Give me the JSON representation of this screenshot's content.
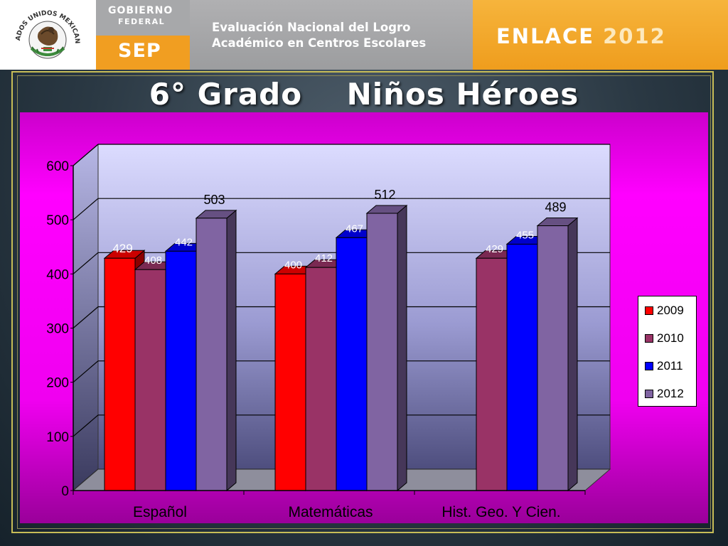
{
  "header": {
    "seal_text": "ESTADOS UNIDOS MEXICANOS",
    "gobierno": "GOBIERNO",
    "federal": "FEDERAL",
    "sep": "SEP",
    "eval_line1": "Evaluación Nacional del Logro",
    "eval_line2": "Académico en Centros Escolares",
    "enlace": "ENLACE",
    "enlace_year": "2012"
  },
  "slide": {
    "title": "6° Grado    Niños Héroes"
  },
  "colors": {
    "series_2009": "#ff0000",
    "series_2010": "#993366",
    "series_2011": "#0000ff",
    "series_2012": "#8064a2",
    "chart_bg": "#ff00ff",
    "plot_bg": "#ccccff"
  },
  "chart_data": {
    "type": "bar",
    "categories": [
      "Español",
      "Matemáticas",
      "Hist. Geo. Y Cien."
    ],
    "series": [
      {
        "name": "2009",
        "values": [
          429,
          400,
          null
        ]
      },
      {
        "name": "2010",
        "values": [
          408,
          412,
          429
        ]
      },
      {
        "name": "2011",
        "values": [
          442,
          467,
          455
        ]
      },
      {
        "name": "2012",
        "values": [
          503,
          512,
          489
        ]
      }
    ],
    "ylim": [
      0,
      600
    ],
    "yticks": [
      "0",
      "100",
      "200",
      "300",
      "400",
      "500",
      "600"
    ],
    "grid": true,
    "legend": "right",
    "style": "3d-clustered"
  }
}
